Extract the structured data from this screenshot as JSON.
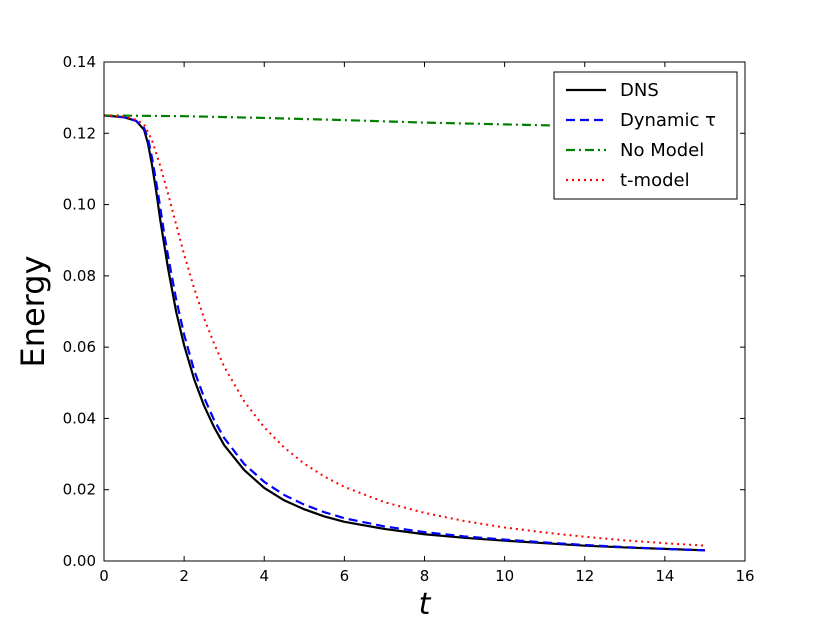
{
  "chart_data": {
    "type": "line",
    "xlabel": "t",
    "ylabel": "Energy",
    "xlim": [
      0,
      16
    ],
    "ylim": [
      0,
      0.14
    ],
    "xticks": [
      "0",
      "2",
      "4",
      "6",
      "8",
      "10",
      "12",
      "14",
      "16"
    ],
    "yticks": [
      "0.00",
      "0.02",
      "0.04",
      "0.06",
      "0.08",
      "0.10",
      "0.12",
      "0.14"
    ],
    "grid": false,
    "legend_position": "top-right",
    "series": [
      {
        "name": "DNS",
        "color": "#000000",
        "style": "solid",
        "x": [
          0,
          0.5,
          0.8,
          1.0,
          1.1,
          1.2,
          1.3,
          1.4,
          1.5,
          1.6,
          1.8,
          2.0,
          2.25,
          2.5,
          2.75,
          3.0,
          3.5,
          4.0,
          4.5,
          5.0,
          5.5,
          6.0,
          7.0,
          8.0,
          9.0,
          10.0,
          11.0,
          12.0,
          13.0,
          14.0,
          15.0
        ],
        "y": [
          0.125,
          0.1245,
          0.1235,
          0.121,
          0.117,
          0.111,
          0.104,
          0.096,
          0.089,
          0.082,
          0.07,
          0.0605,
          0.051,
          0.0435,
          0.0375,
          0.0325,
          0.0255,
          0.0205,
          0.017,
          0.0145,
          0.0125,
          0.011,
          0.009,
          0.0075,
          0.0065,
          0.0057,
          0.005,
          0.0043,
          0.0038,
          0.0034,
          0.003
        ]
      },
      {
        "name": "Dynamic τ",
        "color": "#0000ff",
        "style": "dashed",
        "x": [
          0,
          0.5,
          0.8,
          1.0,
          1.1,
          1.2,
          1.3,
          1.4,
          1.5,
          1.6,
          1.8,
          2.0,
          2.25,
          2.5,
          2.75,
          3.0,
          3.5,
          4.0,
          4.5,
          5.0,
          5.5,
          6.0,
          7.0,
          8.0,
          9.0,
          10.0,
          11.0,
          12.0,
          13.0,
          14.0,
          15.0
        ],
        "y": [
          0.125,
          0.1245,
          0.1235,
          0.1215,
          0.1185,
          0.113,
          0.1065,
          0.0995,
          0.092,
          0.0855,
          0.0735,
          0.0635,
          0.0535,
          0.0458,
          0.0395,
          0.0345,
          0.0272,
          0.0222,
          0.0185,
          0.0158,
          0.0137,
          0.012,
          0.0097,
          0.0081,
          0.0069,
          0.006,
          0.0052,
          0.0045,
          0.0039,
          0.0034,
          0.003
        ]
      },
      {
        "name": "No Model",
        "color": "#008000",
        "style": "dashdot",
        "x": [
          0,
          2,
          4,
          6,
          8,
          10,
          12,
          14,
          15
        ],
        "y": [
          0.125,
          0.1248,
          0.1243,
          0.1237,
          0.123,
          0.1225,
          0.122,
          0.1218,
          0.1215
        ]
      },
      {
        "name": "t-model",
        "color": "#ff0000",
        "style": "dotted",
        "x": [
          0,
          0.5,
          0.8,
          1.0,
          1.2,
          1.4,
          1.6,
          1.8,
          2.0,
          2.25,
          2.5,
          2.75,
          3.0,
          3.5,
          4.0,
          4.5,
          5.0,
          5.5,
          6.0,
          7.0,
          8.0,
          9.0,
          10.0,
          11.0,
          12.0,
          13.0,
          14.0,
          15.0
        ],
        "y": [
          0.125,
          0.1247,
          0.1238,
          0.1225,
          0.118,
          0.111,
          0.103,
          0.0945,
          0.086,
          0.0765,
          0.068,
          0.061,
          0.0545,
          0.0448,
          0.0375,
          0.0318,
          0.0273,
          0.0237,
          0.0208,
          0.0165,
          0.0135,
          0.0112,
          0.0094,
          0.008,
          0.0068,
          0.0058,
          0.005,
          0.0043
        ]
      }
    ]
  }
}
